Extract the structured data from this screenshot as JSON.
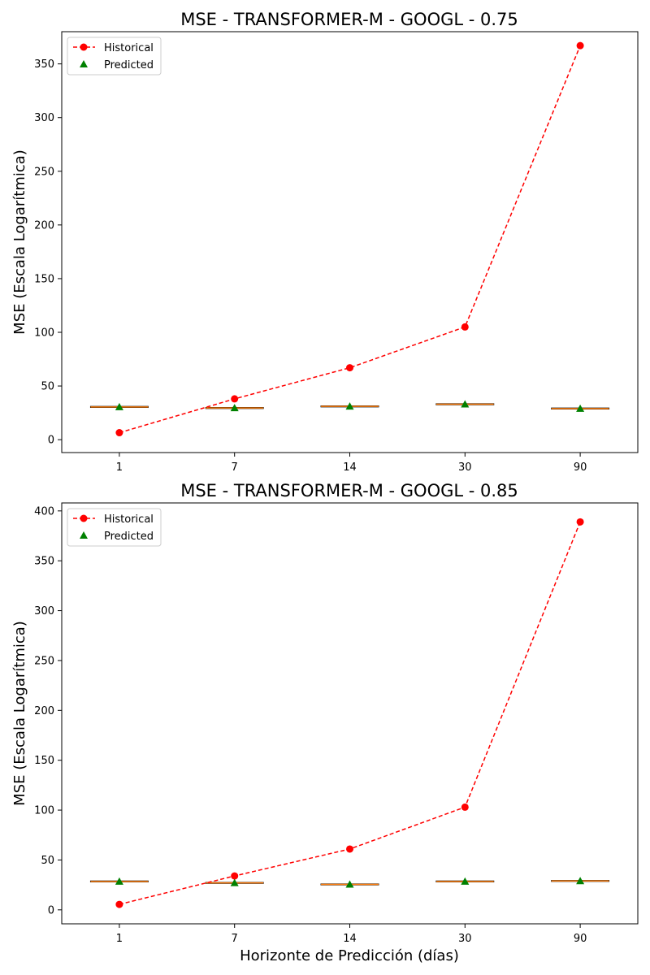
{
  "chart_data": [
    {
      "type": "line",
      "title": "MSE - TRANSFORMER-M - GOOGL - 0.75",
      "xlabel": "",
      "ylabel": "MSE (Escala Logarítmica)",
      "categories": [
        "1",
        "7",
        "14",
        "30",
        "90"
      ],
      "ylim": [
        -12,
        380
      ],
      "yticks": [
        0,
        50,
        100,
        150,
        200,
        250,
        300,
        350
      ],
      "grid": false,
      "legend_position": "top-left",
      "series": [
        {
          "name": "Historical",
          "style": "dashed-line-circle",
          "color": "#ff0000",
          "values": [
            6.5,
            38,
            67,
            105,
            367
          ]
        },
        {
          "name": "Predicted",
          "style": "triangle",
          "color": "#008000",
          "values": [
            30.5,
            29.5,
            31,
            33,
            29
          ]
        }
      ],
      "boxes": [
        {
          "category": "1",
          "median": 30.5,
          "q1": 30,
          "q3": 31
        },
        {
          "category": "7",
          "median": 29.5,
          "q1": 29,
          "q3": 30
        },
        {
          "category": "14",
          "median": 31,
          "q1": 30.5,
          "q3": 31.5
        },
        {
          "category": "30",
          "median": 33,
          "q1": 32.5,
          "q3": 33.5
        },
        {
          "category": "90",
          "median": 29,
          "q1": 28.5,
          "q3": 29.5
        }
      ],
      "box_color": "#000000",
      "median_color": "#ff7f0e"
    },
    {
      "type": "line",
      "title": "MSE - TRANSFORMER-M - GOOGL - 0.85",
      "xlabel": "Horizonte de Predicción (días)",
      "ylabel": "MSE (Escala Logarítmica)",
      "categories": [
        "1",
        "7",
        "14",
        "30",
        "90"
      ],
      "ylim": [
        -14,
        408
      ],
      "yticks": [
        0,
        50,
        100,
        150,
        200,
        250,
        300,
        350,
        400
      ],
      "grid": false,
      "legend_position": "top-left",
      "series": [
        {
          "name": "Historical",
          "style": "dashed-line-circle",
          "color": "#ff0000",
          "values": [
            5.5,
            34,
            61,
            103,
            389
          ]
        },
        {
          "name": "Predicted",
          "style": "triangle",
          "color": "#008000",
          "values": [
            28.5,
            27,
            25.5,
            28.5,
            29
          ]
        }
      ],
      "boxes": [
        {
          "category": "1",
          "median": 28.5,
          "q1": 28,
          "q3": 29
        },
        {
          "category": "7",
          "median": 27,
          "q1": 26.5,
          "q3": 27.5
        },
        {
          "category": "14",
          "median": 25.5,
          "q1": 25,
          "q3": 26
        },
        {
          "category": "30",
          "median": 28.5,
          "q1": 28,
          "q3": 29
        },
        {
          "category": "90",
          "median": 29,
          "q1": 28.5,
          "q3": 29.5
        }
      ],
      "box_color": "#000000",
      "median_color": "#ff7f0e"
    }
  ]
}
